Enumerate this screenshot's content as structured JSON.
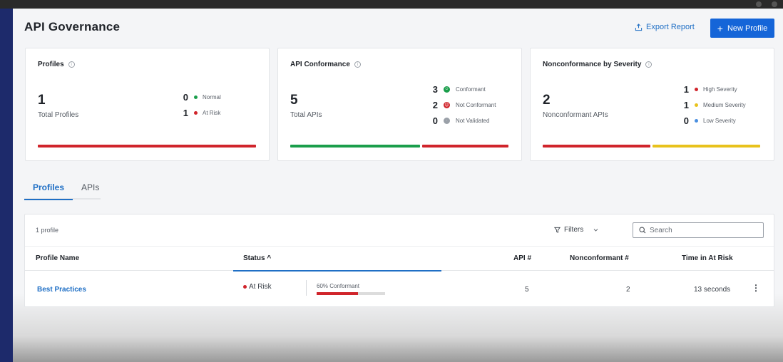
{
  "header": {
    "title": "API Governance",
    "export_label": "Export Report",
    "new_profile_label": "New Profile"
  },
  "cards": {
    "profiles": {
      "title": "Profiles",
      "total": "1",
      "total_label": "Total Profiles",
      "legend": [
        {
          "count": "0",
          "label": "Normal",
          "color": "#1a9e4b"
        },
        {
          "count": "1",
          "label": "At Risk",
          "color": "#d0242b"
        }
      ]
    },
    "conformance": {
      "title": "API Conformance",
      "total": "5",
      "total_label": "Total APIs",
      "legend": [
        {
          "count": "3",
          "label": "Conformant",
          "color": "#1a9e4b"
        },
        {
          "count": "2",
          "label": "Not Conformant",
          "color": "#d0242b"
        },
        {
          "count": "0",
          "label": "Not Validated",
          "color": "#9aa0a8"
        }
      ]
    },
    "severity": {
      "title": "Nonconformance by Severity",
      "total": "2",
      "total_label": "Nonconformant APIs",
      "legend": [
        {
          "count": "1",
          "label": "High Severity",
          "color": "#d0242b"
        },
        {
          "count": "1",
          "label": "Medium Severity",
          "color": "#e8c21c"
        },
        {
          "count": "0",
          "label": "Low Severity",
          "color": "#4a8fe0"
        }
      ]
    }
  },
  "tabs": [
    {
      "label": "Profiles",
      "active": true
    },
    {
      "label": "APIs",
      "active": false
    }
  ],
  "table": {
    "count_text": "1 profile",
    "filters_label": "Filters",
    "search_placeholder": "Search",
    "columns": {
      "name": "Profile Name",
      "status": "Status ^",
      "api": "API #",
      "nonconformant": "Nonconformant #",
      "time": "Time in At Risk"
    },
    "rows": [
      {
        "name": "Best Practices",
        "status": "At Risk",
        "conformance_label": "60% Conformant",
        "conformance_pct": 60,
        "api": "5",
        "nonconformant": "2",
        "time": "13 seconds"
      }
    ]
  },
  "colors": {
    "accent": "#1565d8",
    "red": "#d0242b",
    "green": "#1a9e4b",
    "yellow": "#e8c21c"
  }
}
